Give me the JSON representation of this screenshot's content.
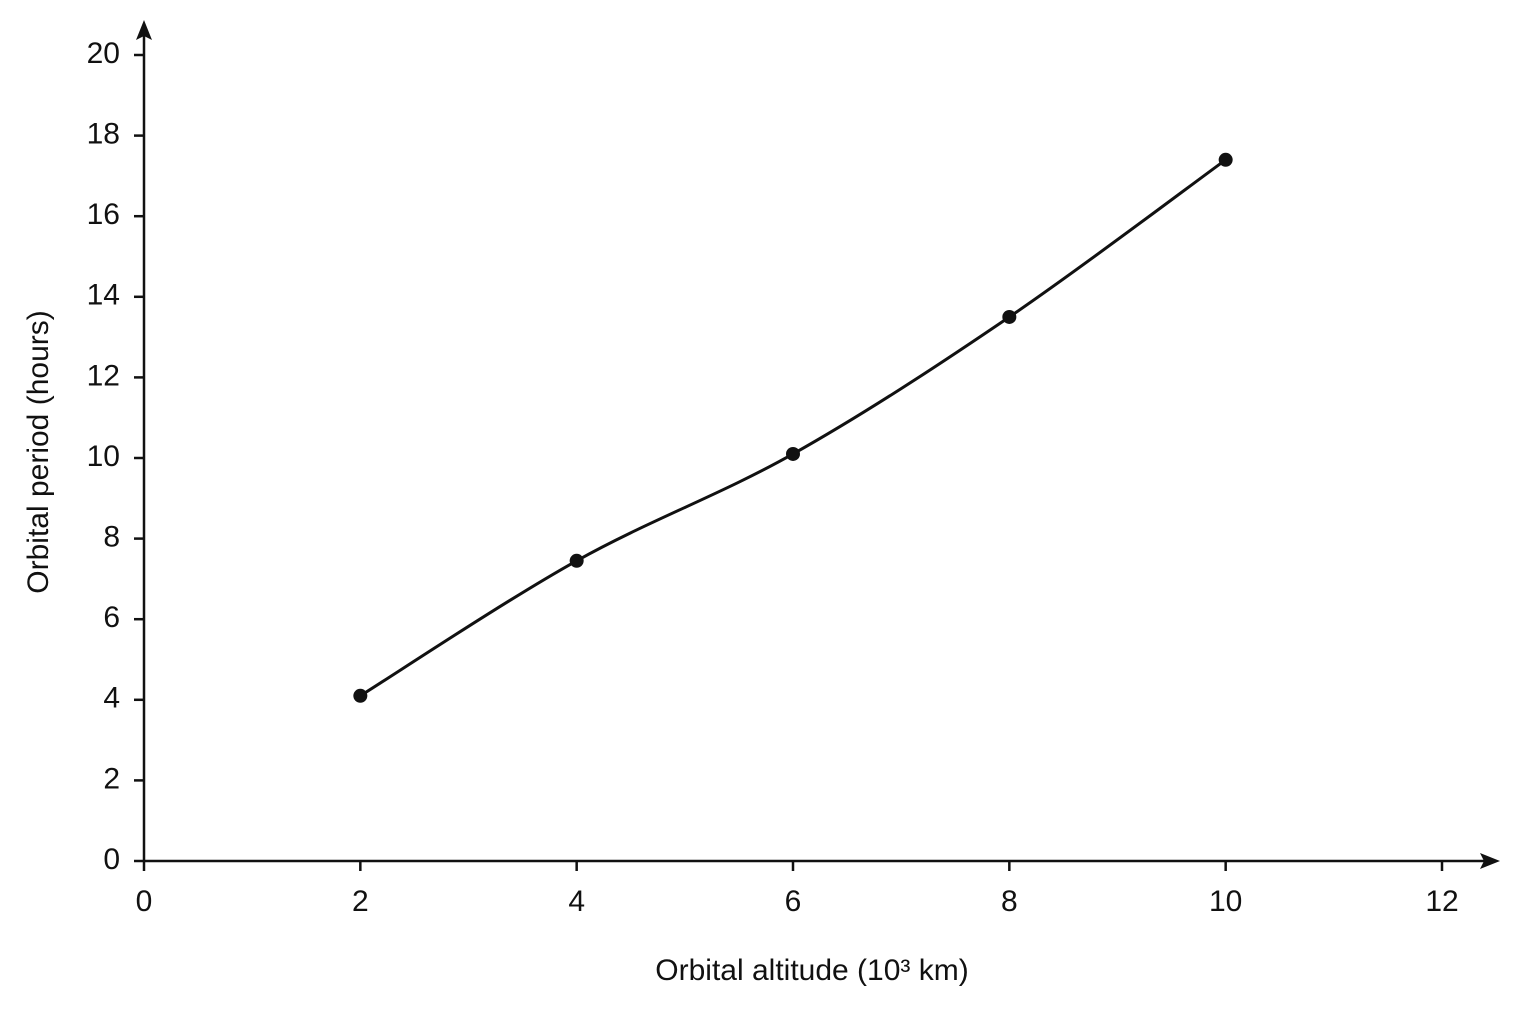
{
  "chart_data": {
    "type": "line",
    "x_label": "Orbital altitude (10³ km)",
    "y_label": "Orbital period (hours)",
    "x": [
      2,
      4,
      6,
      8,
      10
    ],
    "series": [
      {
        "color": "#111111",
        "values": [
          4.1,
          7.45,
          10.1,
          13.5,
          17.4
        ]
      }
    ],
    "xlim": [
      0,
      12
    ],
    "xticks": [
      0,
      2,
      4,
      6,
      8,
      10,
      12
    ],
    "ylim": [
      0,
      20
    ],
    "yticks": [
      0,
      2,
      4,
      6,
      8,
      10,
      12,
      14,
      16,
      18,
      20
    ],
    "grid": false,
    "smooth": true,
    "markers": true
  }
}
